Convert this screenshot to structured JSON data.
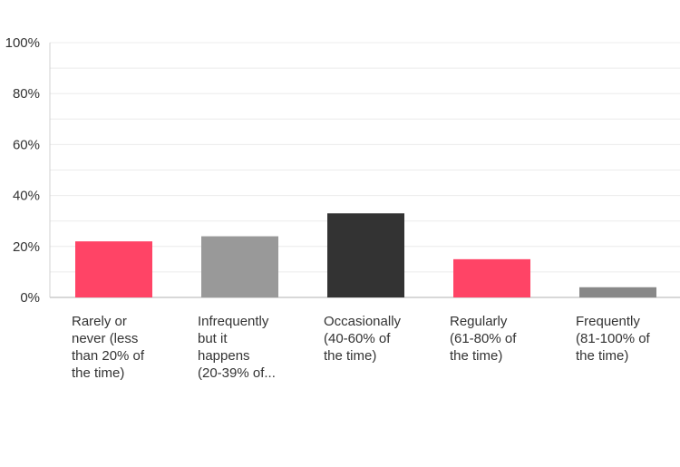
{
  "chart_data": {
    "type": "bar",
    "title": "",
    "xlabel": "",
    "ylabel": "",
    "ylim": [
      0,
      100
    ],
    "y_ticks": [
      "0%",
      "20%",
      "40%",
      "60%",
      "80%",
      "100%"
    ],
    "grid": "horizontal, every 10%",
    "categories": [
      "Rarely or\nnever (less\nthan 20% of\nthe time)",
      "Infrequently\nbut it\nhappens\n(20-39% of...",
      "Occasionally\n(40-60% of\nthe time)",
      "Regularly\n(61-80% of\nthe time)",
      "Frequently\n(81-100% of\nthe time)"
    ],
    "values": [
      22,
      24,
      33,
      15,
      4
    ],
    "colors": [
      "#ff4466",
      "#999999",
      "#333333",
      "#ff4466",
      "#888888"
    ]
  }
}
